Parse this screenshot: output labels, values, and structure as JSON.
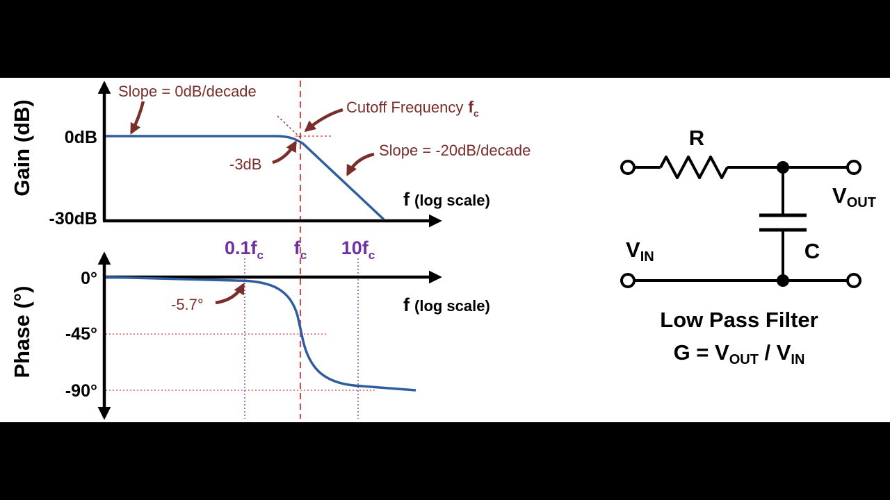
{
  "colors": {
    "background": "#000000",
    "panel": "#ffffff",
    "curve": "#2e5e9e",
    "annotation": "#7a2e2a",
    "cutoff_line": "#e0303a",
    "guide_line": "#7030a0",
    "axis": "#000000"
  },
  "gain_plot": {
    "ylabel": "Gain (dB)",
    "xlabel": {
      "f": "f",
      "rest": "(log scale)"
    },
    "ticks": {
      "top": "0dB",
      "bottom": "-30dB"
    },
    "annotations": {
      "slope_flat": "Slope = 0dB/decade",
      "cutoff": "Cutoff Frequency",
      "cutoff_symbol": "f",
      "cutoff_sub": "c",
      "minus3db": "-3dB",
      "slope_roll": "Slope = -20dB/decade"
    }
  },
  "phase_plot": {
    "ylabel": "Phase (°)",
    "xlabel": {
      "f": "f",
      "rest": "(log scale)"
    },
    "ticks": {
      "zero": "0°",
      "mid": "-45°",
      "low": "-90°"
    },
    "annotations": {
      "point": "-5.7°"
    }
  },
  "freq_labels": [
    {
      "main": "0.1f",
      "sub": "c"
    },
    {
      "main": "f",
      "sub": "c"
    },
    {
      "main": "10f",
      "sub": "c"
    }
  ],
  "circuit": {
    "resistor": "R",
    "capacitor": "C",
    "vin": {
      "main": "V",
      "sub": "IN"
    },
    "vout": {
      "main": "V",
      "sub": "OUT"
    },
    "title": "Low Pass Filter",
    "formula": {
      "g": "G = V",
      "sub1": "OUT",
      "slash": " / V",
      "sub2": "IN"
    }
  }
}
